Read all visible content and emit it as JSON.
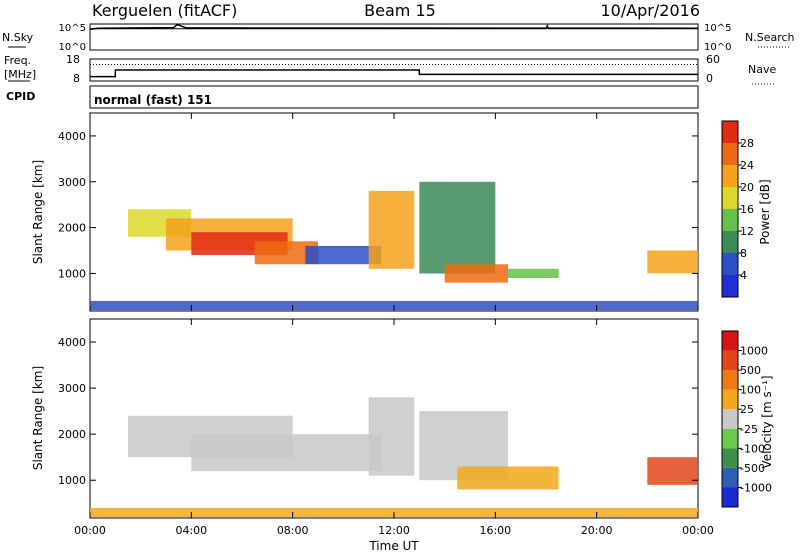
{
  "header": {
    "station": "Kerguelen (fitACF)",
    "beam": "Beam 15",
    "date": "10/Apr/2016"
  },
  "colors": {
    "power_scale": [
      "#1f2fd8",
      "#2d4fc2",
      "#3b8a5a",
      "#63c24a",
      "#d8d92a",
      "#f3a21c",
      "#ee6a12",
      "#e02a14"
    ],
    "velocity_scale": [
      "#1a2bd0",
      "#2f5fb4",
      "#3f8e4a",
      "#6cc84a",
      "#c8c8c8",
      "#f2a81c",
      "#ef7a14",
      "#e2461a",
      "#d61414"
    ],
    "ground_scatter": "#c8c8c8"
  },
  "top_panels": {
    "noise": {
      "left_label": "N.Sky",
      "right_label": "N.Search",
      "left_ticks": [
        "10^5",
        "10^0"
      ],
      "right_ticks": [
        "10^5",
        "10^0"
      ]
    },
    "freq": {
      "left_label_1": "Freq.",
      "left_label_2": "[MHz]",
      "right_label": "Nave",
      "left_ticks": [
        "18",
        "8"
      ],
      "right_ticks": [
        "60",
        "0"
      ]
    },
    "cpid": {
      "left_label": "CPID",
      "mode": "normal (fast) 151"
    }
  },
  "chart_data": [
    {
      "type": "line",
      "name": "noise",
      "x_unit": "hours UT",
      "series": [
        {
          "name": "N.Sky",
          "x": [
            0,
            0.3,
            3.3,
            3.45,
            3.6,
            3.8,
            24
          ],
          "values": [
            4.0,
            4.2,
            4.3,
            4.9,
            4.6,
            4.25,
            4.2
          ]
        },
        {
          "name": "N.Search",
          "x": [
            0,
            18.0,
            18.05,
            18.1,
            24
          ],
          "values": [
            4.1,
            4.1,
            4.8,
            4.1,
            4.1
          ]
        }
      ]
    },
    {
      "type": "line",
      "name": "frequency_nave",
      "x_unit": "hours UT",
      "series": [
        {
          "name": "Freq.",
          "x": [
            0,
            1.0,
            1.0,
            13.0,
            13.0,
            24
          ],
          "values": [
            10,
            10,
            13,
            13,
            11,
            11
          ]
        },
        {
          "name": "Nave",
          "x": [
            0,
            24
          ],
          "values": [
            45,
            45
          ]
        }
      ]
    },
    {
      "type": "heatmap",
      "name": "power",
      "title": "",
      "xlabel": "",
      "ylabel": "Slant Range [km]",
      "colorbar_label": "Power [dB]",
      "colorbar_ticks": [
        "28",
        "24",
        "20",
        "16",
        "12",
        "8",
        "4"
      ],
      "x_range": [
        0,
        24
      ],
      "y_range": [
        180,
        4500
      ],
      "y_ticks": [
        "1000",
        "2000",
        "3000",
        "4000"
      ],
      "regions": [
        {
          "x": [
            1.5,
            4.0
          ],
          "y": [
            1800,
            2400
          ],
          "level": 4
        },
        {
          "x": [
            3.0,
            8.0
          ],
          "y": [
            1500,
            2200
          ],
          "level": 5
        },
        {
          "x": [
            4.0,
            7.8
          ],
          "y": [
            1400,
            1900
          ],
          "level": 7
        },
        {
          "x": [
            6.5,
            9.0
          ],
          "y": [
            1200,
            1700
          ],
          "level": 6
        },
        {
          "x": [
            8.5,
            11.5
          ],
          "y": [
            1200,
            1600
          ],
          "level": 1
        },
        {
          "x": [
            11.0,
            12.8
          ],
          "y": [
            1100,
            2800
          ],
          "level": 5
        },
        {
          "x": [
            13.0,
            16.0
          ],
          "y": [
            1000,
            3000
          ],
          "level": 2
        },
        {
          "x": [
            14.0,
            16.5
          ],
          "y": [
            800,
            1200
          ],
          "level": 6
        },
        {
          "x": [
            16.5,
            18.5
          ],
          "y": [
            900,
            1100
          ],
          "level": 3
        },
        {
          "x": [
            22.0,
            24.0
          ],
          "y": [
            1000,
            1500
          ],
          "level": 5
        },
        {
          "x": [
            0,
            24
          ],
          "y": [
            200,
            400
          ],
          "level": 1
        }
      ]
    },
    {
      "type": "heatmap",
      "name": "velocity",
      "title": "",
      "xlabel": "Time UT",
      "ylabel": "Slant Range [km]",
      "colorbar_label": "Velocity [m s⁻¹]",
      "colorbar_ticks": [
        "1000",
        "500",
        "100",
        "25",
        "-25",
        "-100",
        "-500",
        "-1000"
      ],
      "x_range": [
        0,
        24
      ],
      "y_range": [
        180,
        4500
      ],
      "y_ticks": [
        "1000",
        "2000",
        "3000",
        "4000"
      ],
      "x_ticks": [
        "00:00",
        "04:00",
        "08:00",
        "12:00",
        "16:00",
        "20:00",
        "00:00"
      ],
      "regions": [
        {
          "x": [
            1.5,
            8.0
          ],
          "y": [
            1500,
            2400
          ],
          "level": 4
        },
        {
          "x": [
            4.0,
            11.5
          ],
          "y": [
            1200,
            2000
          ],
          "level": 4
        },
        {
          "x": [
            11.0,
            12.8
          ],
          "y": [
            1100,
            2800
          ],
          "level": 4
        },
        {
          "x": [
            13.0,
            16.5
          ],
          "y": [
            1000,
            2500
          ],
          "level": 4
        },
        {
          "x": [
            14.5,
            18.5
          ],
          "y": [
            800,
            1300
          ],
          "level": 5
        },
        {
          "x": [
            22.0,
            24.0
          ],
          "y": [
            900,
            1500
          ],
          "level": 7
        },
        {
          "x": [
            0,
            24
          ],
          "y": [
            200,
            400
          ],
          "level": 5
        }
      ]
    }
  ]
}
